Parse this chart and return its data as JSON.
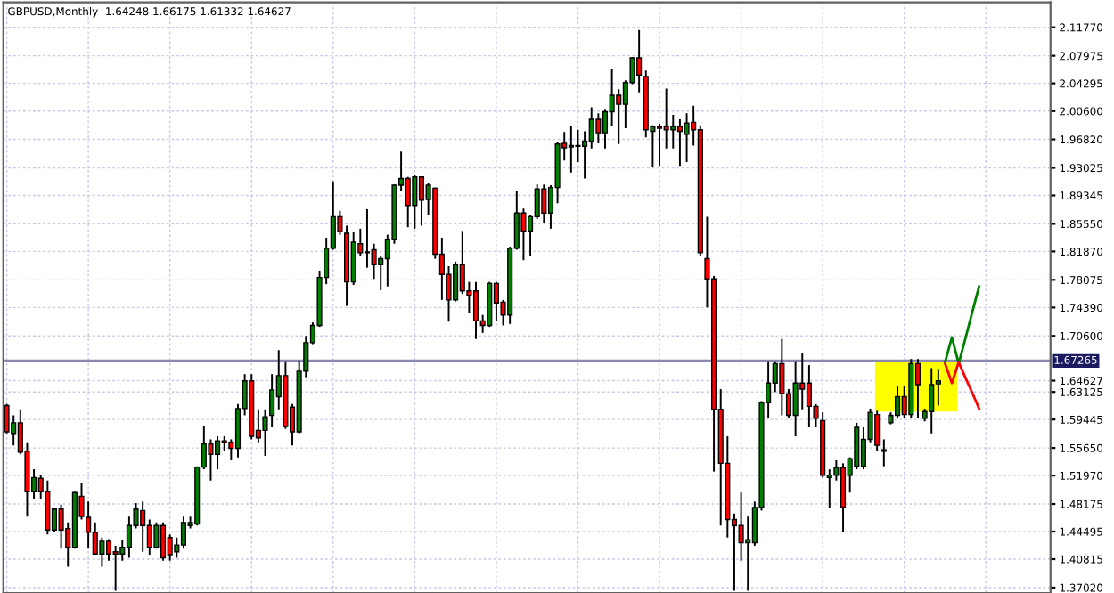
{
  "chart_data": {
    "type": "candlestick",
    "title": "GBPUSD,Monthly  1.64248 1.66175 1.61332 1.64627",
    "categories": [
      null,
      null,
      null,
      null,
      null,
      null,
      null,
      null,
      null,
      null,
      null,
      null,
      null,
      null,
      null,
      null,
      null,
      null,
      null,
      null,
      null,
      null,
      null,
      null,
      null,
      null,
      null,
      null,
      null,
      null,
      null,
      null,
      null,
      null,
      null,
      null,
      null,
      null,
      null,
      null,
      null,
      null,
      null,
      null,
      null,
      null,
      null,
      null,
      null,
      null,
      null,
      null,
      null,
      null,
      null,
      null,
      null,
      null,
      null,
      null,
      null,
      null,
      null,
      null,
      null,
      null,
      null,
      null,
      null,
      null,
      null,
      null,
      null,
      null,
      null,
      null,
      null,
      null,
      null,
      null,
      null,
      null,
      null,
      null,
      null,
      null,
      null,
      null,
      null,
      null,
      null,
      null,
      null,
      null,
      null,
      null,
      null,
      null,
      null,
      null,
      null,
      null,
      null,
      null,
      null,
      null,
      null,
      null,
      null,
      null,
      null,
      null,
      null,
      null,
      null,
      null,
      null,
      null,
      null,
      null,
      null,
      null,
      null,
      null,
      null,
      null,
      null,
      null,
      null,
      null,
      null,
      null,
      null,
      null,
      null,
      null,
      null,
      null,
      null,
      null,
      null,
      null,
      null,
      null,
      null,
      null,
      null,
      null,
      null,
      null,
      null,
      null,
      null,
      null
    ],
    "ohlc": [
      [
        1.613,
        1.615,
        1.576,
        1.578
      ],
      [
        1.576,
        1.6,
        1.56,
        1.59
      ],
      [
        1.59,
        1.608,
        1.548,
        1.551
      ],
      [
        1.552,
        1.564,
        1.465,
        1.498
      ],
      [
        1.498,
        1.528,
        1.489,
        1.517
      ],
      [
        1.516,
        1.52,
        1.489,
        1.498
      ],
      [
        1.498,
        1.513,
        1.441,
        1.447
      ],
      [
        1.447,
        1.477,
        1.445,
        1.475
      ],
      [
        1.475,
        1.481,
        1.422,
        1.447
      ],
      [
        1.449,
        1.457,
        1.398,
        1.424
      ],
      [
        1.424,
        1.498,
        1.422,
        1.497
      ],
      [
        1.492,
        1.509,
        1.461,
        1.465
      ],
      [
        1.464,
        1.485,
        1.422,
        1.444
      ],
      [
        1.444,
        1.457,
        1.414,
        1.415
      ],
      [
        1.415,
        1.437,
        1.398,
        1.432
      ],
      [
        1.432,
        1.435,
        1.406,
        1.415
      ],
      [
        1.418,
        1.426,
        1.366,
        1.415
      ],
      [
        1.415,
        1.434,
        1.406,
        1.424
      ],
      [
        1.424,
        1.465,
        1.41,
        1.453
      ],
      [
        1.453,
        1.483,
        1.449,
        1.475
      ],
      [
        1.473,
        1.485,
        1.418,
        1.453
      ],
      [
        1.453,
        1.461,
        1.414,
        1.424
      ],
      [
        1.424,
        1.457,
        1.422,
        1.453
      ],
      [
        1.453,
        1.457,
        1.406,
        1.41
      ],
      [
        1.437,
        1.441,
        1.406,
        1.414
      ],
      [
        1.418,
        1.437,
        1.41,
        1.427
      ],
      [
        1.427,
        1.465,
        1.422,
        1.457
      ],
      [
        1.453,
        1.465,
        1.449,
        1.457
      ],
      [
        1.455,
        1.532,
        1.453,
        1.531
      ],
      [
        1.531,
        1.585,
        1.528,
        1.562
      ],
      [
        1.562,
        1.568,
        1.513,
        1.548
      ],
      [
        1.548,
        1.572,
        1.528,
        1.566
      ],
      [
        1.566,
        1.572,
        1.552,
        1.564
      ],
      [
        1.564,
        1.568,
        1.54,
        1.556
      ],
      [
        1.556,
        1.615,
        1.544,
        1.609
      ],
      [
        1.609,
        1.655,
        1.6,
        1.646
      ],
      [
        1.646,
        1.655,
        1.568,
        1.572
      ],
      [
        1.58,
        1.608,
        1.564,
        1.57
      ],
      [
        1.58,
        1.608,
        1.546,
        1.598
      ],
      [
        1.6,
        1.655,
        1.584,
        1.634
      ],
      [
        1.625,
        1.687,
        1.608,
        1.653
      ],
      [
        1.653,
        1.671,
        1.582,
        1.585
      ],
      [
        1.611,
        1.615,
        1.56,
        1.578
      ],
      [
        1.578,
        1.672,
        1.576,
        1.659
      ],
      [
        1.659,
        1.706,
        1.651,
        1.697
      ],
      [
        1.697,
        1.724,
        1.695,
        1.72
      ],
      [
        1.72,
        1.793,
        1.718,
        1.784
      ],
      [
        1.784,
        1.837,
        1.775,
        1.823
      ],
      [
        1.823,
        1.912,
        1.821,
        1.865
      ],
      [
        1.865,
        1.873,
        1.841,
        1.845
      ],
      [
        1.843,
        1.853,
        1.746,
        1.778
      ],
      [
        1.778,
        1.845,
        1.774,
        1.831
      ],
      [
        1.829,
        1.849,
        1.813,
        1.817
      ],
      [
        1.817,
        1.875,
        1.797,
        1.818
      ],
      [
        1.821,
        1.829,
        1.782,
        1.801
      ],
      [
        1.801,
        1.813,
        1.767,
        1.809
      ],
      [
        1.809,
        1.841,
        1.772,
        1.835
      ],
      [
        1.835,
        1.908,
        1.829,
        1.907
      ],
      [
        1.907,
        1.952,
        1.9,
        1.916
      ],
      [
        1.916,
        1.918,
        1.851,
        1.88
      ],
      [
        1.88,
        1.92,
        1.849,
        1.918
      ],
      [
        1.918,
        1.919,
        1.853,
        1.887
      ],
      [
        1.888,
        1.91,
        1.867,
        1.907
      ],
      [
        1.903,
        1.904,
        1.809,
        1.815
      ],
      [
        1.815,
        1.837,
        1.754,
        1.788
      ],
      [
        1.788,
        1.799,
        1.725,
        1.754
      ],
      [
        1.754,
        1.805,
        1.752,
        1.801
      ],
      [
        1.801,
        1.846,
        1.762,
        1.766
      ],
      [
        1.766,
        1.778,
        1.736,
        1.76
      ],
      [
        1.766,
        1.778,
        1.702,
        1.726
      ],
      [
        1.726,
        1.734,
        1.71,
        1.72
      ],
      [
        1.72,
        1.778,
        1.718,
        1.776
      ],
      [
        1.776,
        1.778,
        1.726,
        1.75
      ],
      [
        1.751,
        1.754,
        1.72,
        1.734
      ],
      [
        1.734,
        1.825,
        1.722,
        1.823
      ],
      [
        1.823,
        1.899,
        1.821,
        1.87
      ],
      [
        1.87,
        1.876,
        1.807,
        1.846
      ],
      [
        1.846,
        1.867,
        1.813,
        1.865
      ],
      [
        1.865,
        1.908,
        1.862,
        1.902
      ],
      [
        1.902,
        1.908,
        1.857,
        1.87
      ],
      [
        1.87,
        1.907,
        1.849,
        1.904
      ],
      [
        1.904,
        1.965,
        1.883,
        1.962
      ],
      [
        1.963,
        1.978,
        1.94,
        1.957
      ],
      [
        1.958,
        1.986,
        1.924,
        1.96
      ],
      [
        1.96,
        1.981,
        1.938,
        1.959
      ],
      [
        1.959,
        1.979,
        1.916,
        1.966
      ],
      [
        1.966,
        2.011,
        1.956,
        1.995
      ],
      [
        1.995,
        2.003,
        1.963,
        1.977
      ],
      [
        1.977,
        2.009,
        1.956,
        2.005
      ],
      [
        2.005,
        2.062,
        1.986,
        2.027
      ],
      [
        2.027,
        2.035,
        1.962,
        2.015
      ],
      [
        2.015,
        2.047,
        1.983,
        2.044
      ],
      [
        2.044,
        2.078,
        2.042,
        2.077
      ],
      [
        2.077,
        2.114,
        2.031,
        2.054
      ],
      [
        2.052,
        2.06,
        1.971,
        1.981
      ],
      [
        1.979,
        1.987,
        1.932,
        1.985
      ],
      [
        1.985,
        1.989,
        1.933,
        1.983
      ],
      [
        1.985,
        2.036,
        1.956,
        1.981
      ],
      [
        1.981,
        2.001,
        1.956,
        1.985
      ],
      [
        1.985,
        1.995,
        1.933,
        1.979
      ],
      [
        1.975,
        2.003,
        1.938,
        1.99
      ],
      [
        1.991,
        2.013,
        1.96,
        1.981
      ],
      [
        1.981,
        1.987,
        1.813,
        1.817
      ],
      [
        1.809,
        1.865,
        1.744,
        1.782
      ],
      [
        1.782,
        1.786,
        1.525,
        1.608
      ],
      [
        1.608,
        1.635,
        1.453,
        1.536
      ],
      [
        1.536,
        1.572,
        1.437,
        1.461
      ],
      [
        1.461,
        1.469,
        1.366,
        1.453
      ],
      [
        1.453,
        1.497,
        1.406,
        1.43
      ],
      [
        1.43,
        1.465,
        1.366,
        1.434
      ],
      [
        1.43,
        1.485,
        1.426,
        1.477
      ],
      [
        1.477,
        1.619,
        1.473,
        1.617
      ],
      [
        1.617,
        1.671,
        1.596,
        1.643
      ],
      [
        1.643,
        1.671,
        1.631,
        1.669
      ],
      [
        1.669,
        1.702,
        1.6,
        1.629
      ],
      [
        1.629,
        1.635,
        1.596,
        1.6
      ],
      [
        1.6,
        1.671,
        1.572,
        1.643
      ],
      [
        1.643,
        1.683,
        1.608,
        1.635
      ],
      [
        1.643,
        1.667,
        1.584,
        1.612
      ],
      [
        1.612,
        1.615,
        1.584,
        1.596
      ],
      [
        1.593,
        1.604,
        1.517,
        1.52
      ],
      [
        1.517,
        1.528,
        1.477,
        1.52
      ],
      [
        1.52,
        1.54,
        1.513,
        1.53
      ],
      [
        1.53,
        1.536,
        1.445,
        1.477
      ],
      [
        1.52,
        1.544,
        1.497,
        1.542
      ],
      [
        1.532,
        1.59,
        1.528,
        1.584
      ],
      [
        1.532,
        1.584,
        1.528,
        1.568
      ],
      [
        1.568,
        1.609,
        1.564,
        1.604
      ],
      [
        1.601,
        1.606,
        1.552,
        1.56
      ],
      [
        1.552,
        1.568,
        1.532,
        1.554
      ],
      [
        1.59,
        1.604,
        1.588,
        1.6
      ],
      [
        1.6,
        1.639,
        1.596,
        1.625
      ],
      [
        1.625,
        1.639,
        1.596,
        1.601
      ],
      [
        1.601,
        1.675,
        1.596,
        1.669
      ],
      [
        1.669,
        1.675,
        1.596,
        1.641
      ],
      [
        1.596,
        1.609,
        1.592,
        1.605
      ],
      [
        1.605,
        1.663,
        1.576,
        1.641
      ],
      [
        1.642,
        1.662,
        1.613,
        1.646
      ],
      null,
      null,
      null,
      null,
      null,
      null,
      null,
      null,
      null,
      null,
      null,
      null,
      null,
      null,
      null,
      null
    ],
    "series": [
      {
        "type": "line",
        "color": "#008000",
        "values": [
          null,
          null,
          null,
          null,
          null,
          null,
          null,
          null,
          null,
          null,
          null,
          null,
          null,
          null,
          null,
          null,
          null,
          null,
          null,
          null,
          null,
          null,
          null,
          null,
          null,
          null,
          null,
          null,
          null,
          null,
          null,
          null,
          null,
          null,
          null,
          null,
          null,
          null,
          null,
          null,
          null,
          null,
          null,
          null,
          null,
          null,
          null,
          null,
          null,
          null,
          null,
          null,
          null,
          null,
          null,
          null,
          null,
          null,
          null,
          null,
          null,
          null,
          null,
          null,
          null,
          null,
          null,
          null,
          null,
          null,
          null,
          null,
          null,
          null,
          null,
          null,
          null,
          null,
          null,
          null,
          null,
          null,
          null,
          null,
          null,
          null,
          null,
          null,
          null,
          null,
          null,
          null,
          null,
          null,
          null,
          null,
          null,
          null,
          null,
          null,
          null,
          null,
          null,
          null,
          null,
          null,
          null,
          null,
          null,
          null,
          null,
          null,
          null,
          null,
          null,
          null,
          null,
          null,
          null,
          null,
          null,
          null,
          null,
          null,
          null,
          null,
          null,
          null,
          null,
          null,
          null,
          null,
          null,
          null,
          null,
          null,
          null,
          null,
          1.671,
          1.704,
          1.669,
          1.703,
          1.738,
          1.772,
          null,
          null,
          null,
          null,
          null,
          null,
          null,
          null,
          null,
          null
        ]
      },
      {
        "type": "line",
        "color": "#ff0000",
        "values": [
          null,
          null,
          null,
          null,
          null,
          null,
          null,
          null,
          null,
          null,
          null,
          null,
          null,
          null,
          null,
          null,
          null,
          null,
          null,
          null,
          null,
          null,
          null,
          null,
          null,
          null,
          null,
          null,
          null,
          null,
          null,
          null,
          null,
          null,
          null,
          null,
          null,
          null,
          null,
          null,
          null,
          null,
          null,
          null,
          null,
          null,
          null,
          null,
          null,
          null,
          null,
          null,
          null,
          null,
          null,
          null,
          null,
          null,
          null,
          null,
          null,
          null,
          null,
          null,
          null,
          null,
          null,
          null,
          null,
          null,
          null,
          null,
          null,
          null,
          null,
          null,
          null,
          null,
          null,
          null,
          null,
          null,
          null,
          null,
          null,
          null,
          null,
          null,
          null,
          null,
          null,
          null,
          null,
          null,
          null,
          null,
          null,
          null,
          null,
          null,
          null,
          null,
          null,
          null,
          null,
          null,
          null,
          null,
          null,
          null,
          null,
          null,
          null,
          null,
          null,
          null,
          null,
          null,
          null,
          null,
          null,
          null,
          null,
          null,
          null,
          null,
          null,
          null,
          null,
          null,
          null,
          null,
          null,
          null,
          null,
          null,
          null,
          null,
          1.669,
          1.643,
          1.671,
          1.65,
          1.63,
          1.609,
          null,
          null,
          null,
          null,
          null,
          null,
          null,
          null,
          null,
          null
        ]
      }
    ],
    "ylim": [
      1.363,
      2.151
    ],
    "yticks": [
      {
        "value": 2.1177,
        "label": "2.11770"
      },
      {
        "value": 2.07975,
        "label": "2.07975"
      },
      {
        "value": 2.04295,
        "label": "2.04295"
      },
      {
        "value": 2.006,
        "label": "2.00600"
      },
      {
        "value": 1.9682,
        "label": "1.96820"
      },
      {
        "value": 1.93025,
        "label": "1.93025"
      },
      {
        "value": 1.89345,
        "label": "1.89345"
      },
      {
        "value": 1.8555,
        "label": "1.85550"
      },
      {
        "value": 1.8187,
        "label": "1.81870"
      },
      {
        "value": 1.78075,
        "label": "1.78075"
      },
      {
        "value": 1.7439,
        "label": "1.74390"
      },
      {
        "value": 1.706,
        "label": "1.70600"
      },
      {
        "value": 1.64627,
        "label": "1.64627"
      },
      {
        "value": 1.63125,
        "label": "1.63125"
      },
      {
        "value": 1.59445,
        "label": "1.59445"
      },
      {
        "value": 1.5565,
        "label": "1.55650"
      },
      {
        "value": 1.5197,
        "label": "1.51970"
      },
      {
        "value": 1.48175,
        "label": "1.48175"
      },
      {
        "value": 1.44495,
        "label": "1.44495"
      },
      {
        "value": 1.40815,
        "label": "1.40815"
      },
      {
        "value": 1.3702,
        "label": "1.37020"
      }
    ],
    "ref_lines": [
      {
        "axis": "y",
        "value": 1.67265,
        "label": "1.67265",
        "color": "#8888b0"
      }
    ],
    "grid": true
  }
}
